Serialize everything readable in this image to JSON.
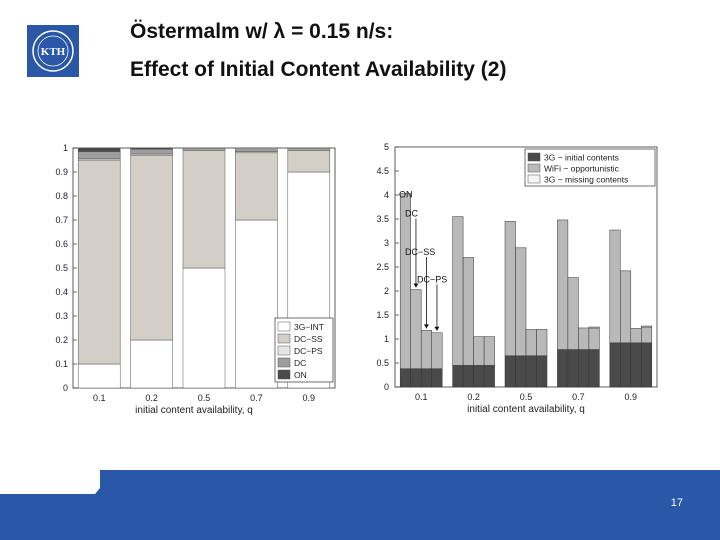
{
  "header": {
    "title_line1": "Östermalm w/ λ = 0.15 n/s:",
    "title_line2": "Effect of Initial Content Availability (2)",
    "logo_text": "KTH"
  },
  "footer": {
    "page_number": "17"
  },
  "colors": {
    "brand_blue": "#2a57a8",
    "dark": "#4a4a4a",
    "mid": "#b9b9b9",
    "light": "#f4f4f4",
    "taupe": "#d3cec6"
  },
  "chart_data": [
    {
      "type": "bar",
      "stacked": true,
      "xlabel": "initial content availability, q",
      "categories": [
        "0.1",
        "0.2",
        "0.5",
        "0.7",
        "0.9"
      ],
      "ylim": [
        0,
        1
      ],
      "yticks": [
        "0",
        "0.1",
        "0.2",
        "0.3",
        "0.4",
        "0.5",
        "0.6",
        "0.7",
        "0.8",
        "0.9",
        "1"
      ],
      "legend": [
        "3G−INT",
        "DC−SS",
        "DC−PS",
        "DC",
        "ON"
      ],
      "legend_position": "bottom-right",
      "series": [
        {
          "name": "3G−INT",
          "values": [
            0.1,
            0.2,
            0.5,
            0.7,
            0.9
          ]
        },
        {
          "name": "DC−SS",
          "values": [
            0.85,
            0.77,
            0.49,
            0.28,
            0.09
          ]
        },
        {
          "name": "DC−PS",
          "values": [
            0.005,
            0.005,
            0.005,
            0.005,
            0.005
          ]
        },
        {
          "name": "DC",
          "values": [
            0.03,
            0.02,
            0.005,
            0.015,
            0.005
          ]
        },
        {
          "name": "ON",
          "values": [
            0.015,
            0.005,
            0.0,
            0.0,
            0.0
          ]
        }
      ]
    },
    {
      "type": "bar",
      "stacked": true,
      "xlabel": "initial content availability, q",
      "categories": [
        "0.1",
        "0.2",
        "0.5",
        "0.7",
        "0.9"
      ],
      "ylim": [
        0,
        5
      ],
      "yticks": [
        "0",
        "0.5",
        "1",
        "1.5",
        "2",
        "2.5",
        "3",
        "3.5",
        "4",
        "4.5",
        "5"
      ],
      "legend": [
        "3G − initial contents",
        "WiFi − opportunistic",
        "3G − missing contents"
      ],
      "legend_position": "top-right",
      "bar_labels": [
        "ON",
        "DC",
        "DC−SS",
        "DC−PS"
      ],
      "series": [
        {
          "name": "3G − initial contents",
          "values": [
            [
              0.38,
              0.38,
              0.38,
              0.38
            ],
            [
              0.45,
              0.45,
              0.45,
              0.45
            ],
            [
              0.65,
              0.65,
              0.65,
              0.65
            ],
            [
              0.78,
              0.78,
              0.78,
              0.78
            ],
            [
              0.92,
              0.92,
              0.92,
              0.92
            ]
          ]
        },
        {
          "name": "WiFi − opportunistic",
          "values": [
            [
              3.65,
              1.65,
              0.8,
              0.75
            ],
            [
              3.1,
              2.25,
              0.6,
              0.6
            ],
            [
              2.8,
              2.25,
              0.55,
              0.55
            ],
            [
              2.7,
              1.5,
              0.45,
              0.45
            ],
            [
              2.35,
              1.5,
              0.3,
              0.33
            ]
          ]
        },
        {
          "name": "3G − missing contents",
          "values": [
            [
              0.0,
              0.0,
              0.0,
              0.0
            ],
            [
              0.0,
              0.0,
              0.0,
              0.0
            ],
            [
              0.0,
              0.0,
              0.0,
              0.0
            ],
            [
              0.0,
              0.0,
              0.0,
              0.02
            ],
            [
              0.0,
              0.0,
              0.0,
              0.02
            ]
          ]
        }
      ]
    }
  ]
}
